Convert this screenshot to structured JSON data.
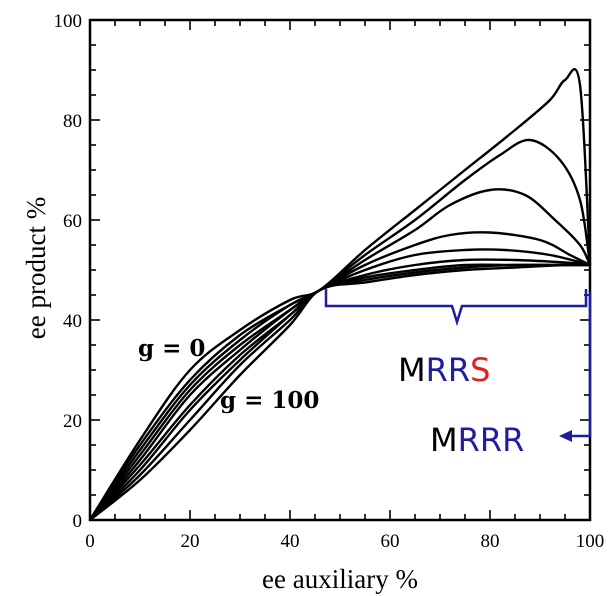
{
  "colors": {
    "axis": "#000000",
    "annotation_blue": "#1f1f9e",
    "highlight_red": "#e02020",
    "letter_black": "#000000"
  },
  "chart_data": {
    "type": "line",
    "xlabel": "ee auxiliary %",
    "ylabel": "ee product %",
    "xlim": [
      0,
      100
    ],
    "ylim": [
      0,
      100
    ],
    "x_ticks": [
      "0",
      "20",
      "40",
      "60",
      "80",
      "100"
    ],
    "y_ticks": [
      "0",
      "20",
      "40",
      "60",
      "80",
      "100"
    ],
    "grid": false,
    "legend": "none",
    "series": [
      {
        "x": [
          0,
          10,
          20,
          30,
          40,
          46,
          55,
          65,
          75,
          85,
          92,
          95,
          98,
          100
        ],
        "y": [
          0,
          16,
          30,
          38,
          44,
          46,
          54,
          62,
          70,
          78,
          84,
          88,
          87,
          51
        ]
      },
      {
        "x": [
          0,
          10,
          20,
          30,
          40,
          46,
          55,
          65,
          75,
          82,
          88,
          94,
          98,
          100
        ],
        "y": [
          0,
          15,
          28,
          37,
          43,
          46,
          53,
          60,
          68,
          73,
          76,
          72,
          64,
          51
        ]
      },
      {
        "x": [
          0,
          10,
          20,
          30,
          40,
          46,
          55,
          65,
          72,
          80,
          87,
          93,
          98,
          100
        ],
        "y": [
          0,
          14,
          27,
          36,
          43,
          46,
          52,
          58,
          63,
          66,
          65,
          60,
          55,
          51
        ]
      },
      {
        "x": [
          0,
          10,
          20,
          30,
          40,
          46,
          55,
          65,
          72,
          80,
          90,
          96,
          100
        ],
        "y": [
          0,
          13,
          26,
          35,
          42,
          46,
          51,
          55,
          57,
          57.5,
          56,
          53,
          51
        ]
      },
      {
        "x": [
          0,
          10,
          20,
          30,
          40,
          46,
          55,
          65,
          75,
          83,
          92,
          100
        ],
        "y": [
          0,
          12,
          25,
          34,
          42,
          46,
          50,
          53,
          54,
          54,
          53,
          51
        ]
      },
      {
        "x": [
          0,
          10,
          20,
          30,
          40,
          46,
          55,
          65,
          75,
          85,
          95,
          100
        ],
        "y": [
          0,
          11,
          23,
          33,
          41,
          46,
          49,
          51,
          52,
          52,
          51.5,
          51
        ]
      },
      {
        "x": [
          0,
          10,
          20,
          30,
          40,
          46,
          55,
          65,
          75,
          85,
          95,
          100
        ],
        "y": [
          0,
          10,
          22,
          32,
          41,
          46,
          48.5,
          50,
          51,
          51,
          51,
          51
        ]
      },
      {
        "x": [
          0,
          10,
          20,
          30,
          40,
          46,
          55,
          65,
          75,
          85,
          95,
          100
        ],
        "y": [
          0,
          9,
          20,
          31,
          40,
          46,
          48,
          49.5,
          50.5,
          51,
          51,
          51
        ]
      },
      {
        "x": [
          0,
          10,
          20,
          30,
          40,
          46,
          55,
          65,
          75,
          85,
          95,
          100
        ],
        "y": [
          0,
          8,
          18,
          29,
          39,
          46,
          47.5,
          49,
          50,
          50.5,
          51,
          51
        ]
      }
    ],
    "annotations": {
      "g_top": "g = 0",
      "g_bottom": "g = 100",
      "mrrs": {
        "m": "M",
        "rr": "RR",
        "s": "S"
      },
      "mrrr": {
        "m": "M",
        "rrr": "RRR"
      }
    }
  }
}
